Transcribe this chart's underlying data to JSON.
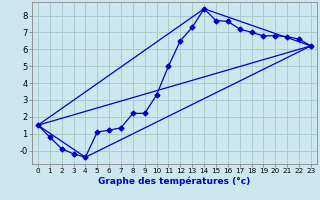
{
  "xlabel": "Graphe des températures (°c)",
  "background_color": "#cce8ee",
  "grid_color": "#aacccc",
  "line_color": "#0000cc",
  "xlim": [
    -0.5,
    23.5
  ],
  "ylim": [
    -0.8,
    8.8
  ],
  "xticks": [
    0,
    1,
    2,
    3,
    4,
    5,
    6,
    7,
    8,
    9,
    10,
    11,
    12,
    13,
    14,
    15,
    16,
    17,
    18,
    19,
    20,
    21,
    22,
    23
  ],
  "yticks": [
    0,
    1,
    2,
    3,
    4,
    5,
    6,
    7,
    8
  ],
  "ytick_labels": [
    "-0",
    "1",
    "2",
    "3",
    "4",
    "5",
    "6",
    "7",
    "8"
  ],
  "line1_x": [
    0,
    1,
    2,
    3,
    4,
    5,
    6,
    7,
    8,
    9,
    10,
    11,
    12,
    13,
    14,
    15,
    16,
    17,
    18,
    19,
    20,
    21,
    22,
    23
  ],
  "line1_y": [
    1.5,
    0.8,
    0.1,
    -0.2,
    -0.4,
    1.1,
    1.2,
    1.35,
    2.2,
    2.2,
    3.3,
    5.0,
    6.5,
    7.3,
    8.4,
    7.7,
    7.65,
    7.2,
    7.0,
    6.8,
    6.8,
    6.75,
    6.6,
    6.2
  ],
  "line2_x": [
    0,
    23
  ],
  "line2_y": [
    1.5,
    6.2
  ],
  "line3_x": [
    0,
    4,
    23
  ],
  "line3_y": [
    1.5,
    -0.4,
    6.2
  ],
  "line4_x": [
    0,
    14,
    23
  ],
  "line4_y": [
    1.5,
    8.4,
    6.2
  ],
  "marker_size": 2.5,
  "line_width": 0.9
}
